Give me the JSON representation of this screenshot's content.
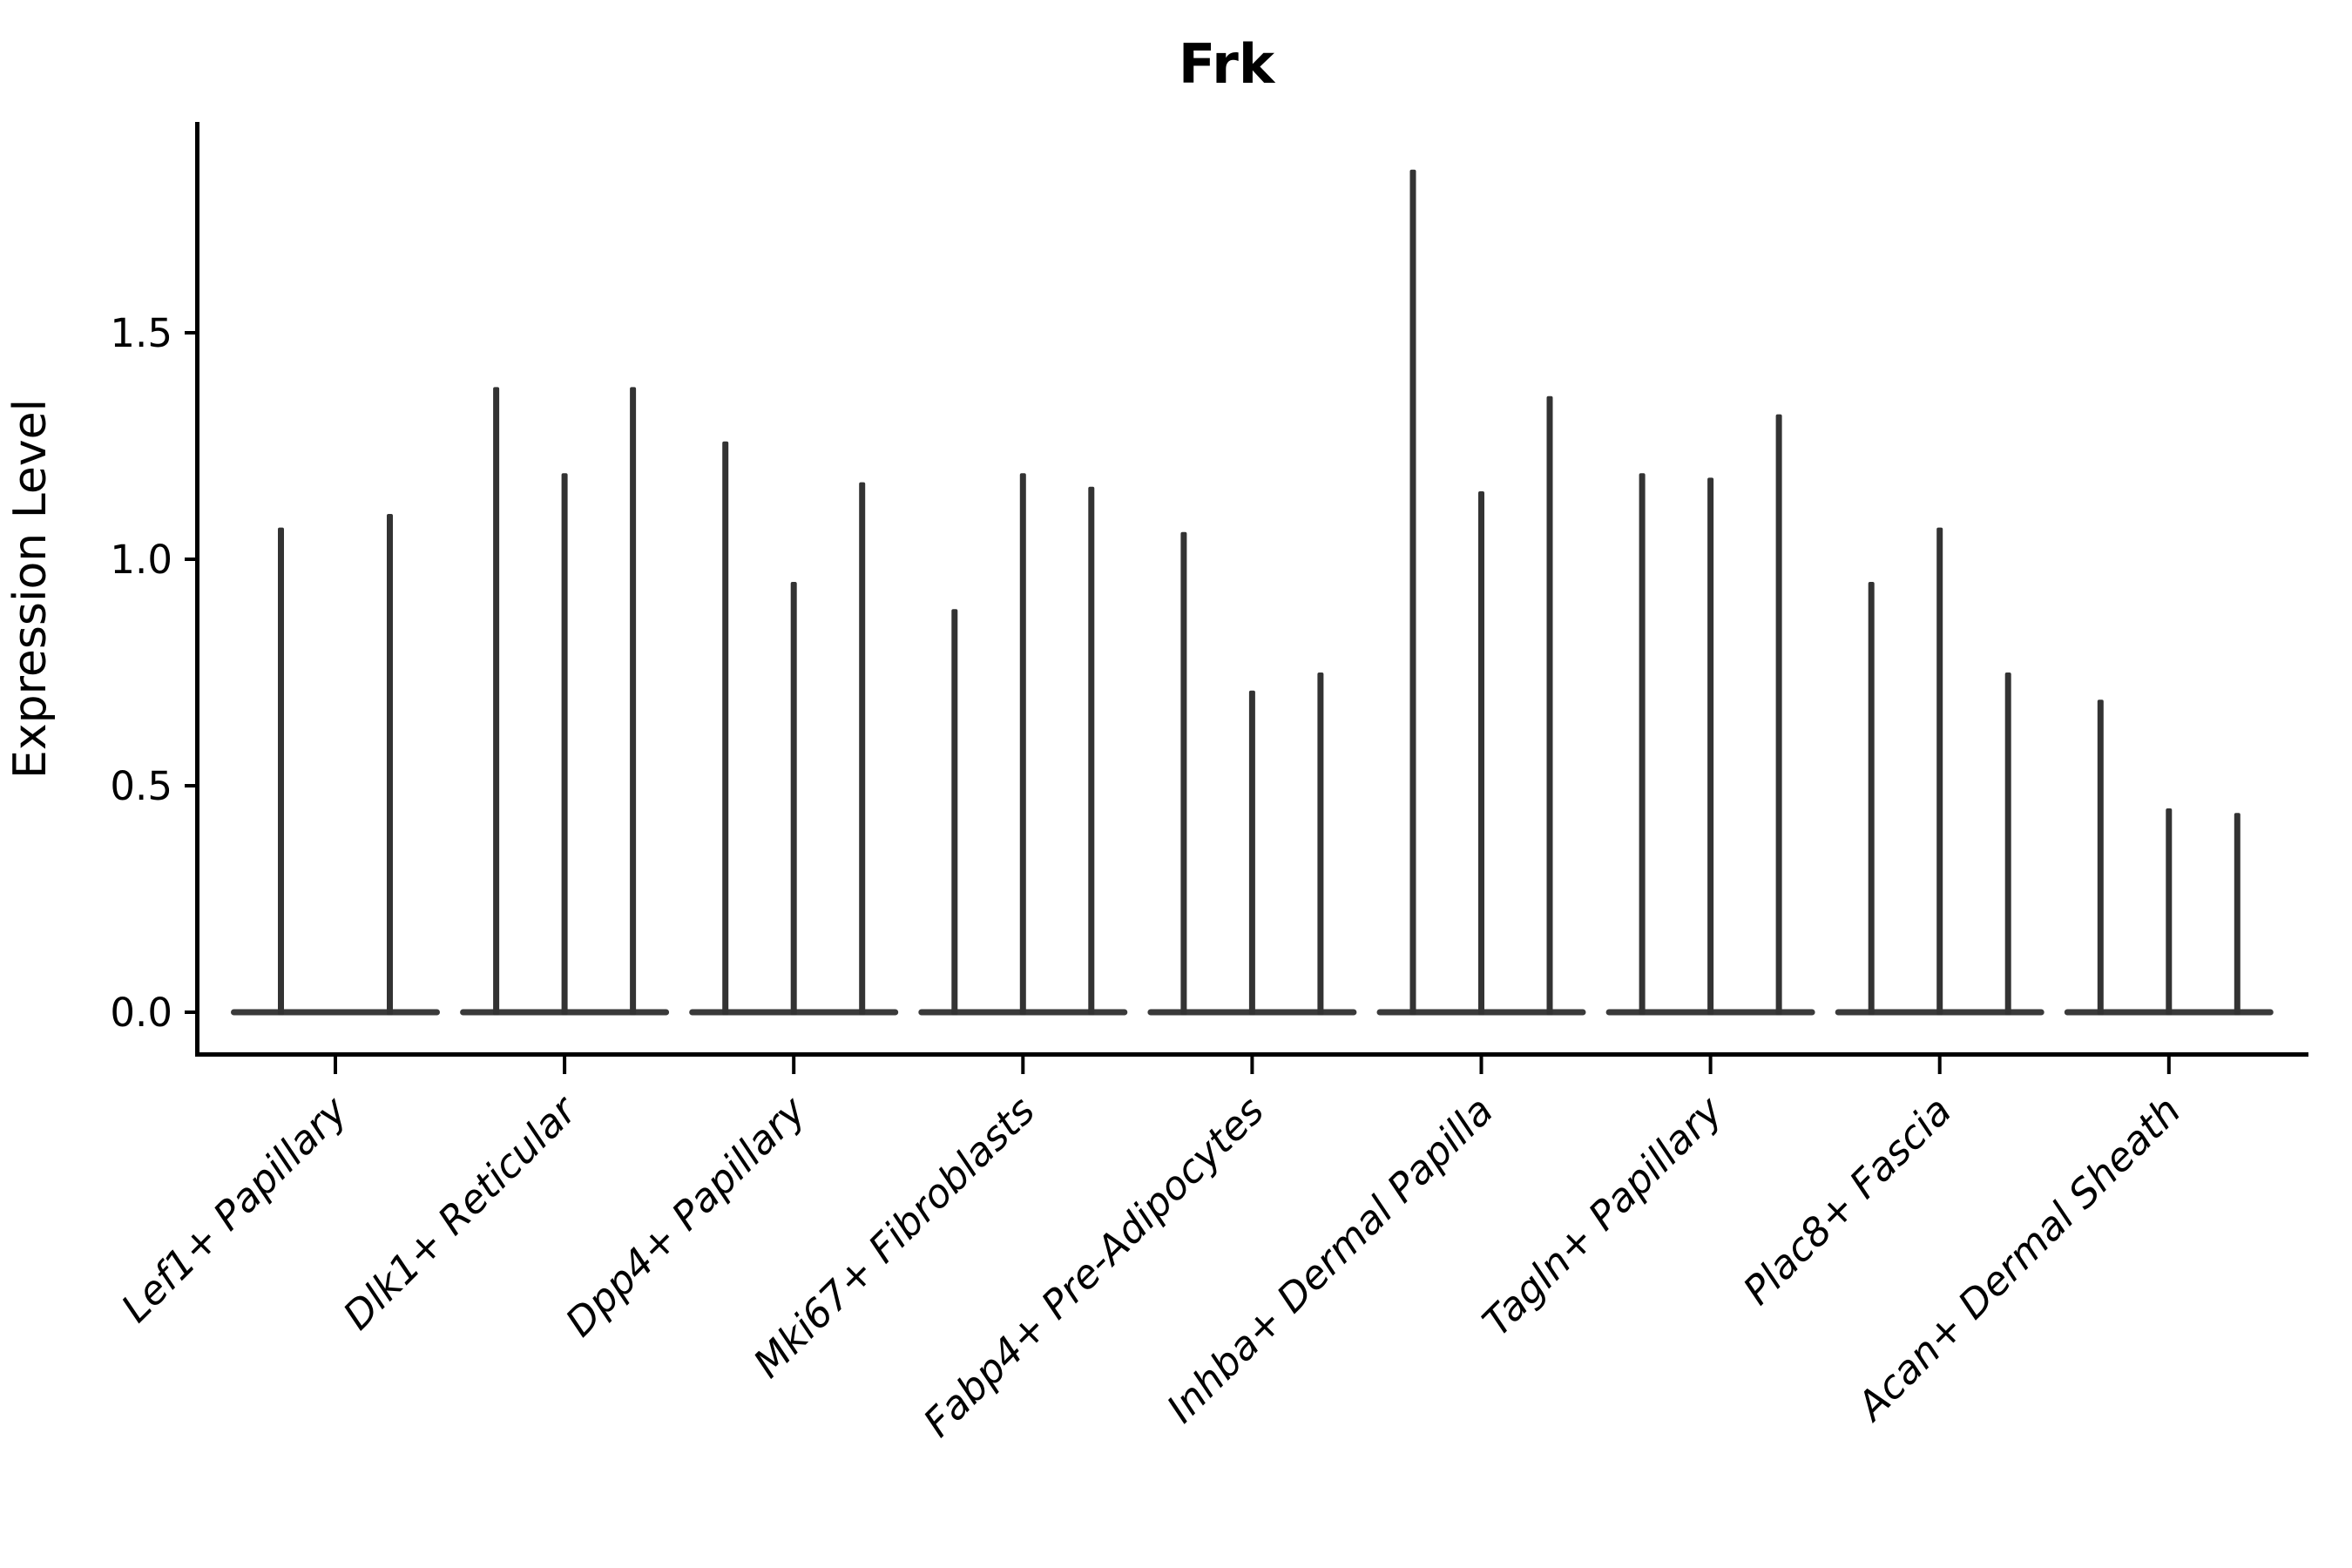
{
  "title": "Frk",
  "axes": {
    "ylabel": "Expression Level",
    "yticks": [
      0.0,
      0.5,
      1.0,
      1.5
    ],
    "ylim": [
      0.0,
      1.95
    ]
  },
  "colors": {
    "violin": "#333333",
    "violin_base": "#3a3a3a",
    "axis": "#000000",
    "background": "#ffffff"
  },
  "chart_data": {
    "type": "violin",
    "title": "Frk",
    "xlabel": "",
    "ylabel": "Expression Level",
    "ylim": [
      0.0,
      1.95
    ],
    "yticks": [
      0.0,
      0.5,
      1.0,
      1.5
    ],
    "grid": false,
    "legend": "none",
    "description": "Single-cell gene expression violin plot for gene Frk; violins are collapsed to thin spikes (most cells near zero), grouped per cell type with 2-3 replicate violins each; spike value = maximum expression level reached.",
    "categories": [
      "Lef1+ Papillary",
      "Dlk1+ Reticular",
      "Dpp4+ Papillary",
      "Mki67+ Fibroblasts",
      "Fabp4+ Pre-Adipocytes",
      "Inhba+ Dermal Papilla",
      "Tagln+ Papillary",
      "Plac8+ Fascia",
      "Acan+ Dermal Sheath"
    ],
    "groups": [
      {
        "label": "Lef1+ Papillary",
        "spike_max_values": [
          1.07,
          1.1
        ]
      },
      {
        "label": "Dlk1+ Reticular",
        "spike_max_values": [
          1.38,
          1.19,
          1.38
        ]
      },
      {
        "label": "Dpp4+ Papillary",
        "spike_max_values": [
          1.26,
          0.95,
          1.17
        ]
      },
      {
        "label": "Mki67+ Fibroblasts",
        "spike_max_values": [
          0.89,
          1.19,
          1.16
        ]
      },
      {
        "label": "Fabp4+ Pre-Adipocytes",
        "spike_max_values": [
          1.06,
          0.71,
          0.75
        ]
      },
      {
        "label": "Inhba+ Dermal Papilla",
        "spike_max_values": [
          1.86,
          1.15,
          1.36
        ]
      },
      {
        "label": "Tagln+ Papillary",
        "spike_max_values": [
          1.19,
          1.18,
          1.32
        ]
      },
      {
        "label": "Plac8+ Fascia",
        "spike_max_values": [
          0.95,
          1.07,
          0.75
        ]
      },
      {
        "label": "Acan+ Dermal Sheath",
        "spike_max_values": [
          0.69,
          0.45,
          0.44
        ]
      }
    ]
  }
}
